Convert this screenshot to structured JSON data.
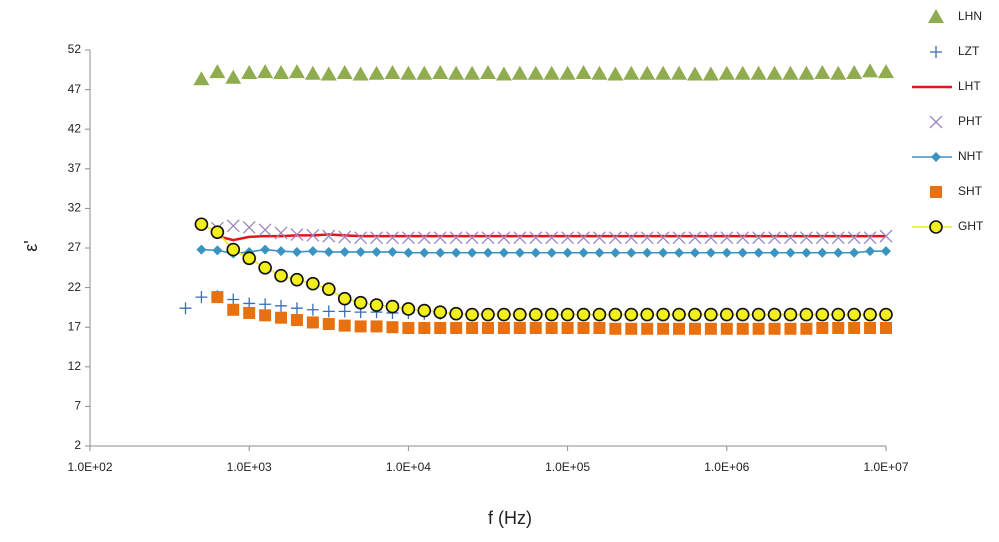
{
  "chart_data": {
    "type": "scatter",
    "x_label": "f (Hz)",
    "y_label": "ε'",
    "log_x": true,
    "grid": false,
    "legend": "right",
    "xlim": [
      100,
      10000000
    ],
    "xticks": [
      {
        "value": 100,
        "label": "1.0E+02"
      },
      {
        "value": 1000,
        "label": "1.0E+03"
      },
      {
        "value": 10000,
        "label": "1.0E+04"
      },
      {
        "value": 100000,
        "label": "1.0E+05"
      },
      {
        "value": 1000000,
        "label": "1.0E+06"
      },
      {
        "value": 10000000,
        "label": "1.0E+07"
      }
    ],
    "ylim": [
      2,
      52
    ],
    "yticks": [
      2,
      7,
      12,
      17,
      22,
      27,
      32,
      37,
      42,
      47,
      52
    ],
    "x": [
      398,
      501,
      631,
      794,
      1000,
      1259,
      1585,
      1995,
      2512,
      3162,
      3981,
      5012,
      6310,
      7943,
      10000,
      12589,
      15849,
      19953,
      25119,
      31623,
      39811,
      50119,
      63096,
      79433,
      100000,
      125893,
      158489,
      199526,
      251189,
      316228,
      398107,
      501187,
      630957,
      794328,
      1000000,
      1258925,
      1584893,
      1995262,
      2511886,
      3162278,
      3981072,
      5011872,
      6309573,
      7943282,
      10000000
    ],
    "series": [
      {
        "name": "LHN",
        "color": "#8fac4f",
        "marker": "triangle",
        "line": false,
        "values": [
          null,
          48.3,
          49.2,
          48.5,
          49.1,
          49.2,
          49.1,
          49.2,
          49.0,
          48.9,
          49.1,
          48.9,
          49.0,
          49.1,
          49.0,
          49.0,
          49.1,
          49.0,
          49.0,
          49.1,
          48.9,
          49.0,
          49.0,
          49.0,
          49.0,
          49.1,
          49.0,
          48.9,
          49.0,
          49.0,
          49.0,
          49.0,
          48.9,
          48.9,
          49.0,
          49.0,
          49.0,
          49.0,
          49.0,
          49.0,
          49.1,
          49.0,
          49.1,
          49.3,
          49.2
        ]
      },
      {
        "name": "LZT",
        "color": "#3d6db5",
        "marker": "plus",
        "line": false,
        "values": [
          19.4,
          20.8,
          20.9,
          20.5,
          20.0,
          19.9,
          19.7,
          19.4,
          19.2,
          19.0,
          19.0,
          18.9,
          18.9,
          18.8,
          18.8,
          18.7,
          18.7,
          18.6,
          18.6,
          18.6,
          18.6,
          18.6,
          18.6,
          18.6,
          18.6,
          18.6,
          18.6,
          18.6,
          18.6,
          18.6,
          18.6,
          18.6,
          18.6,
          18.6,
          18.6,
          18.6,
          18.6,
          18.6,
          18.6,
          18.6,
          18.6,
          18.6,
          18.6,
          18.6,
          18.6
        ]
      },
      {
        "name": "LHT",
        "color": "#e3141b",
        "marker": "none",
        "line": true,
        "values": [
          null,
          null,
          28.5,
          28.0,
          28.4,
          28.5,
          28.5,
          28.6,
          28.6,
          28.7,
          28.6,
          28.5,
          28.5,
          28.5,
          28.5,
          28.5,
          28.5,
          28.5,
          28.5,
          28.5,
          28.5,
          28.5,
          28.5,
          28.5,
          28.5,
          28.5,
          28.5,
          28.5,
          28.5,
          28.5,
          28.5,
          28.5,
          28.5,
          28.5,
          28.5,
          28.5,
          28.5,
          28.5,
          28.5,
          28.5,
          28.5,
          28.5,
          28.5,
          28.5,
          28.5
        ]
      },
      {
        "name": "PHT",
        "color": "#9a86bf",
        "marker": "cross",
        "line": false,
        "values": [
          null,
          null,
          29.5,
          29.8,
          29.6,
          29.3,
          28.9,
          28.7,
          28.6,
          28.5,
          28.4,
          28.3,
          28.3,
          28.3,
          28.3,
          28.3,
          28.3,
          28.3,
          28.3,
          28.3,
          28.3,
          28.3,
          28.3,
          28.3,
          28.3,
          28.3,
          28.3,
          28.3,
          28.3,
          28.3,
          28.3,
          28.3,
          28.3,
          28.3,
          28.3,
          28.3,
          28.3,
          28.3,
          28.3,
          28.3,
          28.3,
          28.3,
          28.3,
          28.3,
          28.5
        ]
      },
      {
        "name": "NHT",
        "color": "#3b93c0",
        "marker": "diamond",
        "line": true,
        "values": [
          null,
          26.8,
          26.7,
          26.3,
          26.5,
          26.8,
          26.6,
          26.5,
          26.6,
          26.5,
          26.5,
          26.5,
          26.5,
          26.5,
          26.4,
          26.4,
          26.4,
          26.4,
          26.4,
          26.4,
          26.4,
          26.4,
          26.4,
          26.4,
          26.4,
          26.4,
          26.4,
          26.4,
          26.4,
          26.4,
          26.4,
          26.4,
          26.4,
          26.4,
          26.4,
          26.4,
          26.4,
          26.4,
          26.4,
          26.4,
          26.4,
          26.4,
          26.4,
          26.6,
          26.6
        ]
      },
      {
        "name": "SHT",
        "color": "#e8700f",
        "marker": "square",
        "line": false,
        "values": [
          null,
          null,
          20.8,
          19.2,
          18.8,
          18.5,
          18.2,
          17.9,
          17.6,
          17.4,
          17.2,
          17.1,
          17.1,
          17.0,
          16.9,
          16.9,
          16.9,
          16.9,
          16.9,
          16.9,
          16.9,
          16.9,
          16.9,
          16.9,
          16.9,
          16.9,
          16.9,
          16.8,
          16.8,
          16.8,
          16.8,
          16.8,
          16.8,
          16.8,
          16.8,
          16.8,
          16.8,
          16.8,
          16.8,
          16.8,
          16.9,
          16.9,
          16.9,
          16.9,
          16.9
        ]
      },
      {
        "name": "GHT",
        "color": "#f2ef1a",
        "marker": "circle",
        "line": true,
        "values": [
          null,
          30.0,
          29.0,
          26.8,
          25.7,
          24.5,
          23.5,
          23.0,
          22.5,
          21.8,
          20.6,
          20.1,
          19.8,
          19.6,
          19.3,
          19.1,
          18.9,
          18.7,
          18.6,
          18.6,
          18.6,
          18.6,
          18.6,
          18.6,
          18.6,
          18.6,
          18.6,
          18.6,
          18.6,
          18.6,
          18.6,
          18.6,
          18.6,
          18.6,
          18.6,
          18.6,
          18.6,
          18.6,
          18.6,
          18.6,
          18.6,
          18.6,
          18.6,
          18.6,
          18.6
        ]
      }
    ]
  }
}
